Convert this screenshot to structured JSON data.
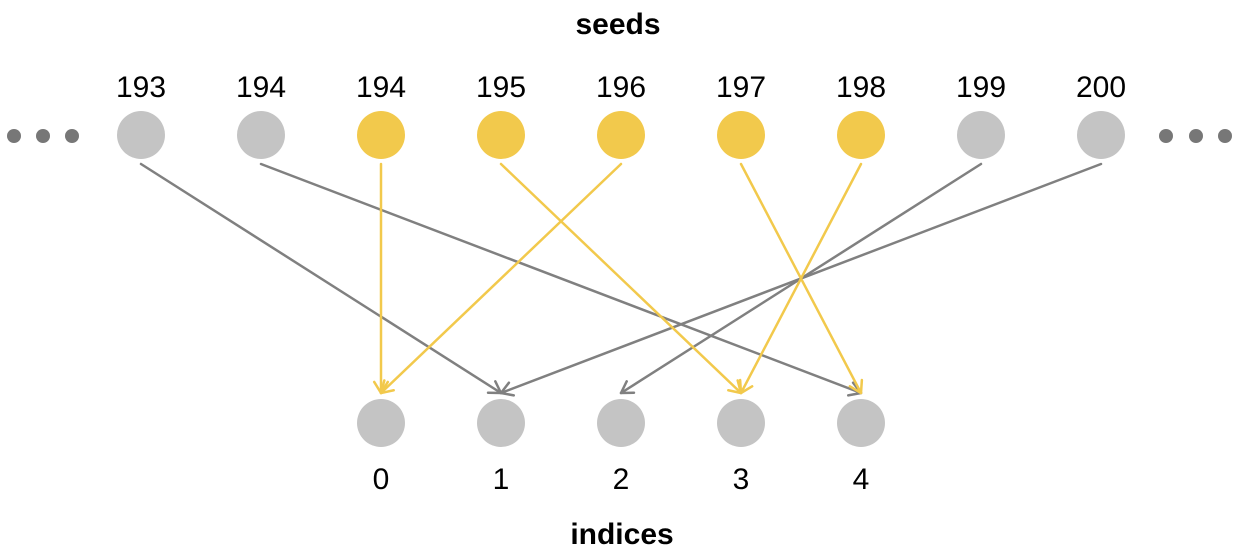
{
  "titles": {
    "top": "seeds",
    "bottom": "indices"
  },
  "colors": {
    "highlight": "#f2c94c",
    "muted": "#c4c4c4",
    "gray_arrow": "#808080",
    "yellow_arrow": "#f2c94c",
    "ellipsis": "#777777"
  },
  "seeds": [
    {
      "label": "193",
      "highlighted": false,
      "target": 1
    },
    {
      "label": "194",
      "highlighted": false,
      "target": 4
    },
    {
      "label": "194",
      "highlighted": true,
      "target": 0
    },
    {
      "label": "195",
      "highlighted": true,
      "target": 3
    },
    {
      "label": "196",
      "highlighted": true,
      "target": 0
    },
    {
      "label": "197",
      "highlighted": true,
      "target": 4
    },
    {
      "label": "198",
      "highlighted": true,
      "target": 3
    },
    {
      "label": "199",
      "highlighted": false,
      "target": 2
    },
    {
      "label": "200",
      "highlighted": false,
      "target": 1
    }
  ],
  "indices": [
    "0",
    "1",
    "2",
    "3",
    "4"
  ]
}
